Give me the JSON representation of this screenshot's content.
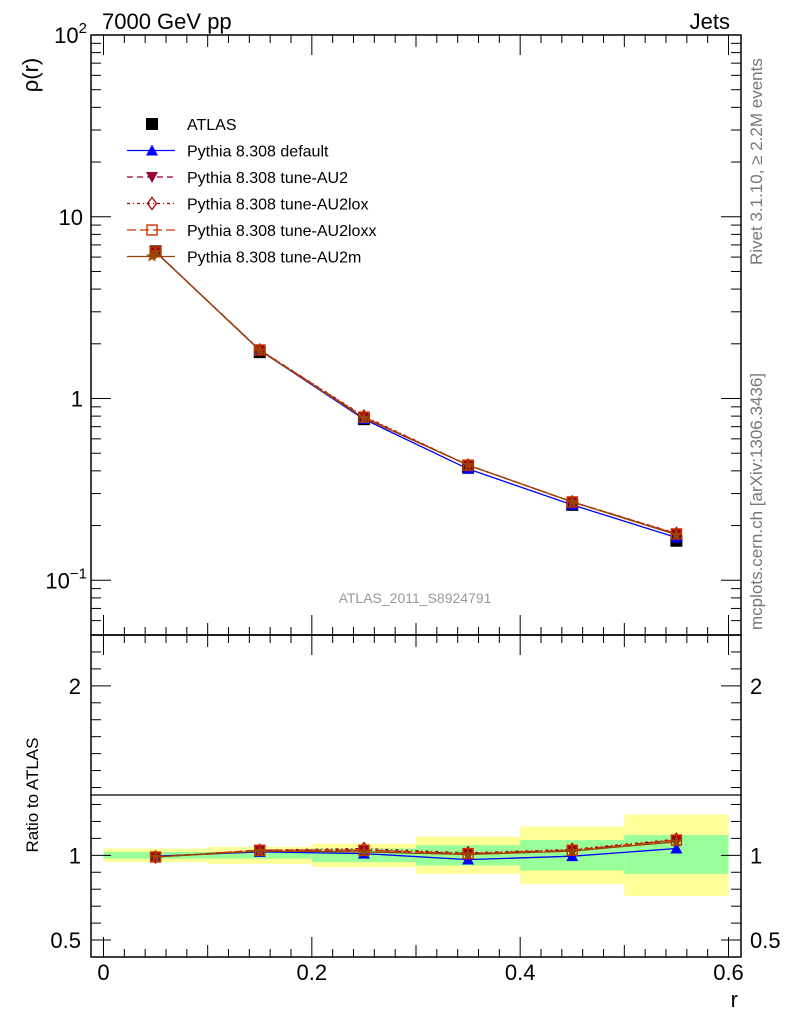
{
  "header": {
    "left": "7000 GeV pp",
    "right": "Jets"
  },
  "side_text": {
    "top": "Rivet 3.1.10, ≥ 2.2M events",
    "bottom": "mcplots.cern.ch [arXiv:1306.3436]"
  },
  "watermark": "ATLAS_2011_S8924791",
  "chart_data": [
    {
      "type": "line",
      "panel": "main",
      "ylabel": "ρ(r)",
      "yscale": "log",
      "ylim": [
        0.05,
        100
      ],
      "xlim": [
        -0.012,
        0.612
      ],
      "y_ticks": [
        {
          "value": 100,
          "base": "10",
          "exp": "2"
        },
        {
          "value": 10,
          "label": "10"
        },
        {
          "value": 1,
          "label": "1"
        },
        {
          "value": 0.1,
          "base": "10",
          "exp": "−1"
        }
      ],
      "x": [
        0.05,
        0.15,
        0.25,
        0.35,
        0.45,
        0.55
      ],
      "series": [
        {
          "name": "ATLAS",
          "values": [
            6.45,
            1.8,
            0.77,
            0.42,
            0.26,
            0.165
          ],
          "color": "#000000",
          "marker": "square-filled",
          "line": "none"
        },
        {
          "name": "Pythia 8.308 default",
          "values": [
            6.42,
            1.84,
            0.77,
            0.41,
            0.26,
            0.172
          ],
          "color": "#0000ff",
          "marker": "triangle-up-filled",
          "line": "solid"
        },
        {
          "name": "Pythia 8.308 tune-AU2",
          "values": [
            6.4,
            1.85,
            0.79,
            0.43,
            0.27,
            0.18
          ],
          "color": "#990033",
          "marker": "triangle-down-filled",
          "line": "dashed"
        },
        {
          "name": "Pythia 8.308 tune-AU2lox",
          "values": [
            6.4,
            1.85,
            0.8,
            0.43,
            0.27,
            0.181
          ],
          "color": "#aa0000",
          "marker": "diamond-open",
          "line": "dashdot"
        },
        {
          "name": "Pythia 8.308 tune-AU2loxx",
          "values": [
            6.41,
            1.85,
            0.79,
            0.43,
            0.27,
            0.18
          ],
          "color": "#cc3300",
          "marker": "square-open",
          "line": "longdash"
        },
        {
          "name": "Pythia 8.308 tune-AU2m",
          "values": [
            6.4,
            1.84,
            0.78,
            0.43,
            0.27,
            0.178
          ],
          "color": "#994400",
          "marker": "star",
          "line": "solid"
        }
      ]
    },
    {
      "type": "line",
      "panel": "ratio",
      "ylabel": "Ratio to ATLAS",
      "xlabel": "r",
      "ylim": [
        0.4,
        2.3
      ],
      "xlim": [
        -0.012,
        0.612
      ],
      "x_ticks": [
        "0",
        "0.2",
        "0.4",
        "0.6"
      ],
      "y_ticks": [
        "0.5",
        "1",
        "2"
      ],
      "bands": [
        {
          "x": [
            0.0,
            0.1
          ],
          "green": [
            0.98,
            1.02
          ],
          "yellow": [
            0.96,
            1.04
          ]
        },
        {
          "x": [
            0.1,
            0.2
          ],
          "green": [
            0.98,
            1.02
          ],
          "yellow": [
            0.95,
            1.05
          ]
        },
        {
          "x": [
            0.2,
            0.3
          ],
          "green": [
            0.96,
            1.04
          ],
          "yellow": [
            0.93,
            1.07
          ]
        },
        {
          "x": [
            0.3,
            0.4
          ],
          "green": [
            0.94,
            1.06
          ],
          "yellow": [
            0.89,
            1.11
          ]
        },
        {
          "x": [
            0.4,
            0.5
          ],
          "green": [
            0.91,
            1.09
          ],
          "yellow": [
            0.83,
            1.17
          ]
        },
        {
          "x": [
            0.5,
            0.6
          ],
          "green": [
            0.89,
            1.12
          ],
          "yellow": [
            0.76,
            1.24
          ]
        }
      ],
      "series": [
        {
          "name": "Pythia 8.308 default",
          "values": [
            0.995,
            1.02,
            1.01,
            0.975,
            0.995,
            1.04
          ]
        },
        {
          "name": "Pythia 8.308 tune-AU2",
          "values": [
            0.99,
            1.03,
            1.03,
            1.01,
            1.03,
            1.09
          ]
        },
        {
          "name": "Pythia 8.308 tune-AU2lox",
          "values": [
            0.99,
            1.03,
            1.04,
            1.015,
            1.035,
            1.095
          ]
        },
        {
          "name": "Pythia 8.308 tune-AU2loxx",
          "values": [
            0.99,
            1.03,
            1.03,
            1.01,
            1.03,
            1.09
          ]
        },
        {
          "name": "Pythia 8.308 tune-AU2m",
          "values": [
            0.99,
            1.025,
            1.02,
            1.005,
            1.025,
            1.08
          ]
        }
      ]
    }
  ]
}
